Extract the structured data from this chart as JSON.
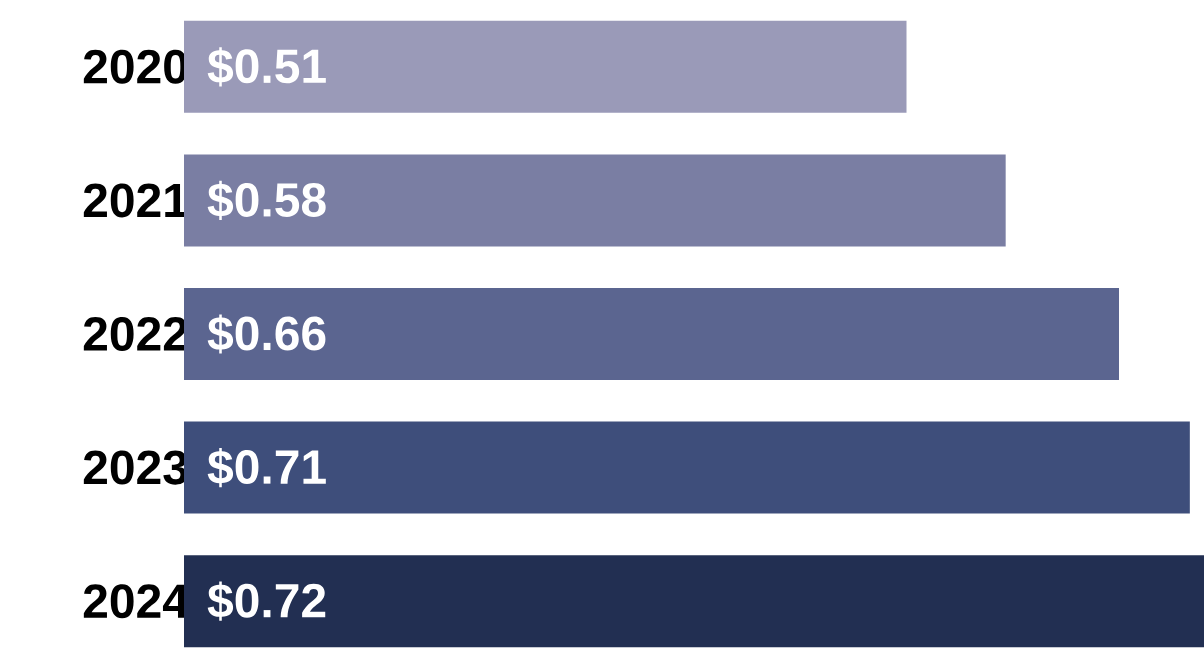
{
  "chart_data": {
    "type": "bar",
    "orientation": "horizontal",
    "categories": [
      "2020",
      "2021",
      "2022",
      "2023",
      "2024"
    ],
    "values": [
      0.51,
      0.58,
      0.66,
      0.71,
      0.72
    ],
    "colors": [
      "#9a9ab8",
      "#7a7ea3",
      "#5b6590",
      "#3e4e7b",
      "#222f52"
    ],
    "value_labels": [
      "$0.51",
      "$0.58",
      "$0.66",
      "$0.71",
      "$0.72"
    ]
  }
}
